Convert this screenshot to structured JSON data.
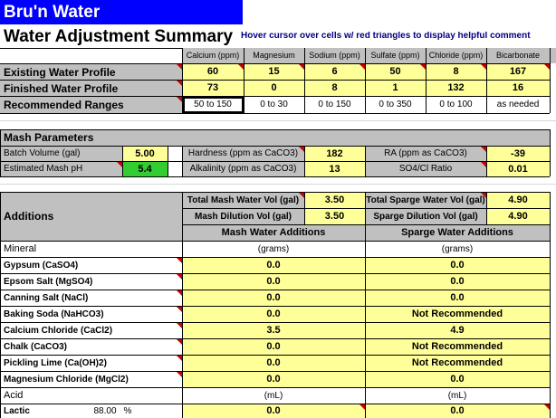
{
  "app_title": "Bru'n Water",
  "page_title": "Water Adjustment Summary",
  "hover_hint": "Hover cursor over cells w/ red triangles to display helpful comment",
  "profile": {
    "columns": [
      "Calcium (ppm)",
      "Magnesium",
      "Sodium (ppm)",
      "Sulfate (ppm)",
      "Chloride (ppm)",
      "Bicarbonate"
    ],
    "existing_label": "Existing Water Profile",
    "existing": [
      "60",
      "15",
      "6",
      "50",
      "8",
      "167"
    ],
    "finished_label": "Finished Water Profile",
    "finished": [
      "73",
      "0",
      "8",
      "1",
      "132",
      "16"
    ],
    "ranges_label": "Recommended Ranges",
    "ranges": [
      "50 to 150",
      "0 to 30",
      "0 to 150",
      "0 to 350",
      "0 to 100",
      "as needed"
    ]
  },
  "mash_params": {
    "header": "Mash Parameters",
    "batch_label": "Batch Volume (gal)",
    "batch_value": "5.00",
    "ph_label": "Estimated Mash pH",
    "ph_value": "5.4",
    "hardness_label": "Hardness (ppm as CaCO3)",
    "hardness_value": "182",
    "alkalinity_label": "Alkalinity (ppm as CaCO3)",
    "alkalinity_value": "13",
    "ra_label": "RA (ppm as CaCO3)",
    "ra_value": "-39",
    "so4cl_label": "SO4/Cl Ratio",
    "so4cl_value": "0.01"
  },
  "additions": {
    "header": "Additions",
    "total_mash_label": "Total Mash Water Vol (gal)",
    "total_mash_value": "3.50",
    "mash_dilution_label": "Mash Dilution Vol (gal)",
    "mash_dilution_value": "3.50",
    "total_sparge_label": "Total Sparge Water Vol (gal)",
    "total_sparge_value": "4.90",
    "sparge_dilution_label": "Sparge Dilution Vol (gal)",
    "sparge_dilution_value": "4.90",
    "mash_col_header": "Mash Water Additions",
    "sparge_col_header": "Sparge Water Additions",
    "mineral_label": "Mineral",
    "grams_unit": "(grams)",
    "minerals": [
      {
        "name": "Gypsum (CaSO4)",
        "mash": "0.0",
        "sparge": "0.0"
      },
      {
        "name": "Epsom Salt (MgSO4)",
        "mash": "0.0",
        "sparge": "0.0"
      },
      {
        "name": "Canning Salt (NaCl)",
        "mash": "0.0",
        "sparge": "0.0"
      },
      {
        "name": "Baking Soda (NaHCO3)",
        "mash": "0.0",
        "sparge": "Not Recommended"
      },
      {
        "name": "Calcium Chloride (CaCl2)",
        "mash": "3.5",
        "sparge": "4.9"
      },
      {
        "name": "Chalk (CaCO3)",
        "mash": "0.0",
        "sparge": "Not Recommended"
      },
      {
        "name": "Pickling Lime (Ca(OH)2)",
        "mash": "0.0",
        "sparge": "Not Recommended"
      },
      {
        "name": "Magnesium Chloride (MgCl2)",
        "mash": "0.0",
        "sparge": "0.0"
      }
    ],
    "acid_label": "Acid",
    "ml_unit": "(mL)",
    "lactic_label": "Lactic",
    "lactic_pct": "88.00",
    "pct_sign": "%",
    "lactic_mash": "0.0",
    "lactic_sparge": "0.0"
  },
  "colors": {
    "title_bar": "#0000ff",
    "input_yellow": "#ffff99",
    "header_gray": "#c0c0c0",
    "ph_green": "#33cc33",
    "hint_blue": "#000080",
    "comment_triangle": "#cc0000"
  }
}
